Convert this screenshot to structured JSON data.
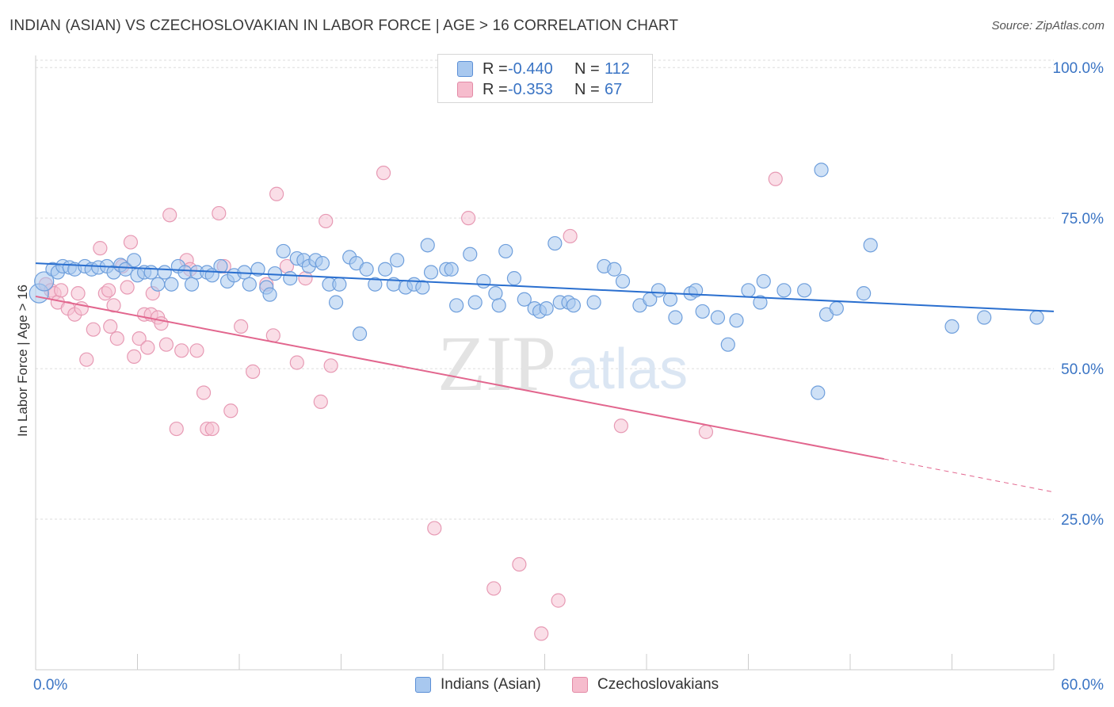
{
  "title": "INDIAN (ASIAN) VS CZECHOSLOVAKIAN IN LABOR FORCE | AGE > 16 CORRELATION CHART",
  "source": "Source: ZipAtlas.com",
  "watermark": {
    "zip": "ZIP",
    "atlas": "atlas"
  },
  "legend_top": {
    "rows": [
      {
        "r_label": "R =",
        "r_value": "-0.440",
        "n_label": "N =",
        "n_value": "112",
        "color": "#a8c8ef",
        "border": "#5b8fd6"
      },
      {
        "r_label": "R =",
        "r_value": "-0.353",
        "n_label": "N =",
        "n_value": "67",
        "color": "#f6bccd",
        "border": "#e38aa6"
      }
    ]
  },
  "legend_bottom": [
    {
      "label": "Indians (Asian)",
      "color": "#a8c8ef",
      "border": "#5b8fd6"
    },
    {
      "label": "Czechoslovakians",
      "color": "#f6bccd",
      "border": "#e38aa6"
    }
  ],
  "colors": {
    "blue_line": "#2a6fcf",
    "pink_line": "#e2668e",
    "blue_fill": "#a8c8ef",
    "blue_stroke": "#6f9fdc",
    "pink_fill": "#f6c3d3",
    "pink_stroke": "#e79ab4",
    "grid": "#dddddd",
    "tick_text": "#3a74c4"
  },
  "chart_data": {
    "type": "scatter",
    "title": "INDIAN (ASIAN) VS CZECHOSLOVAKIAN IN LABOR FORCE | AGE > 16 CORRELATION CHART",
    "xlabel": "",
    "ylabel": "In Labor Force | Age > 16",
    "xlim": [
      0,
      60
    ],
    "ylim": [
      0,
      102
    ],
    "x_tick_labels": [
      "0.0%",
      "60.0%"
    ],
    "y_ticks": [
      25,
      50,
      75,
      100
    ],
    "y_tick_labels": [
      "25.0%",
      "50.0%",
      "75.0%",
      "100.0%"
    ],
    "grid": "horizontal dashed",
    "legend_placement": "top-center",
    "series": [
      {
        "name": "Indians (Asian)",
        "trend": [
          [
            0,
            67.5
          ],
          [
            60,
            59.5
          ]
        ],
        "points": [
          [
            0.2,
            62.5
          ],
          [
            0.5,
            64.5
          ],
          [
            1.0,
            66.5
          ],
          [
            1.3,
            66.0
          ],
          [
            1.6,
            67.0
          ],
          [
            2.0,
            66.8
          ],
          [
            2.3,
            66.5
          ],
          [
            2.9,
            67.0
          ],
          [
            3.3,
            66.5
          ],
          [
            3.7,
            66.8
          ],
          [
            4.2,
            67.0
          ],
          [
            4.6,
            66.0
          ],
          [
            5.0,
            67.2
          ],
          [
            5.3,
            66.5
          ],
          [
            5.8,
            68.0
          ],
          [
            6.0,
            65.5
          ],
          [
            6.4,
            66.0
          ],
          [
            6.8,
            66.0
          ],
          [
            7.2,
            64.0
          ],
          [
            7.6,
            66.0
          ],
          [
            8.0,
            64.0
          ],
          [
            8.4,
            67.0
          ],
          [
            8.8,
            66.0
          ],
          [
            9.2,
            64.0
          ],
          [
            9.5,
            66.0
          ],
          [
            10.1,
            66.0
          ],
          [
            10.4,
            65.5
          ],
          [
            10.9,
            67.0
          ],
          [
            11.3,
            64.5
          ],
          [
            11.7,
            65.5
          ],
          [
            12.3,
            66.0
          ],
          [
            12.6,
            64.0
          ],
          [
            13.1,
            66.5
          ],
          [
            13.6,
            63.5
          ],
          [
            13.8,
            62.3
          ],
          [
            14.1,
            65.8
          ],
          [
            14.6,
            69.5
          ],
          [
            15.0,
            65.0
          ],
          [
            15.4,
            68.3
          ],
          [
            15.8,
            68.0
          ],
          [
            16.1,
            67.0
          ],
          [
            16.5,
            68.0
          ],
          [
            16.9,
            67.5
          ],
          [
            17.3,
            64.0
          ],
          [
            17.7,
            61.0
          ],
          [
            17.9,
            64.0
          ],
          [
            18.5,
            68.5
          ],
          [
            18.9,
            67.5
          ],
          [
            19.1,
            55.8
          ],
          [
            19.5,
            66.5
          ],
          [
            20.0,
            64.0
          ],
          [
            20.6,
            66.5
          ],
          [
            21.1,
            64.0
          ],
          [
            21.3,
            68.0
          ],
          [
            21.8,
            63.5
          ],
          [
            22.3,
            64.0
          ],
          [
            22.8,
            63.5
          ],
          [
            23.1,
            70.5
          ],
          [
            23.3,
            66.0
          ],
          [
            24.2,
            66.5
          ],
          [
            24.5,
            66.5
          ],
          [
            24.8,
            60.5
          ],
          [
            25.6,
            69.0
          ],
          [
            25.9,
            61.0
          ],
          [
            26.4,
            64.5
          ],
          [
            27.1,
            62.5
          ],
          [
            27.3,
            60.5
          ],
          [
            27.7,
            69.5
          ],
          [
            28.2,
            65.0
          ],
          [
            28.8,
            61.5
          ],
          [
            29.4,
            60.0
          ],
          [
            29.7,
            59.5
          ],
          [
            30.1,
            60.0
          ],
          [
            30.6,
            70.8
          ],
          [
            30.9,
            61.0
          ],
          [
            31.4,
            61.0
          ],
          [
            31.7,
            60.5
          ],
          [
            32.9,
            61.0
          ],
          [
            33.5,
            67.0
          ],
          [
            34.1,
            66.5
          ],
          [
            34.6,
            64.5
          ],
          [
            35.6,
            60.5
          ],
          [
            36.2,
            61.5
          ],
          [
            36.7,
            63.0
          ],
          [
            37.4,
            61.5
          ],
          [
            37.7,
            58.5
          ],
          [
            38.6,
            62.5
          ],
          [
            38.9,
            63.0
          ],
          [
            39.3,
            59.5
          ],
          [
            40.2,
            58.5
          ],
          [
            40.8,
            54.0
          ],
          [
            41.3,
            58.0
          ],
          [
            42.0,
            63.0
          ],
          [
            42.7,
            61.0
          ],
          [
            42.9,
            64.5
          ],
          [
            44.1,
            63.0
          ],
          [
            45.3,
            63.0
          ],
          [
            46.1,
            46.0
          ],
          [
            46.3,
            83.0
          ],
          [
            46.6,
            59.0
          ],
          [
            47.2,
            60.0
          ],
          [
            48.8,
            62.5
          ],
          [
            49.2,
            70.5
          ],
          [
            54.0,
            57.0
          ],
          [
            55.9,
            58.5
          ],
          [
            59.0,
            58.5
          ]
        ]
      },
      {
        "name": "Czechoslovakians",
        "trend_solid": [
          [
            0,
            62.0
          ],
          [
            50,
            35.0
          ]
        ],
        "trend_dashed": [
          [
            50,
            35.0
          ],
          [
            60,
            29.5
          ]
        ],
        "points": [
          [
            0.6,
            64.0
          ],
          [
            0.9,
            63.0
          ],
          [
            1.1,
            62.5
          ],
          [
            1.3,
            61.0
          ],
          [
            1.5,
            63.0
          ],
          [
            1.9,
            60.0
          ],
          [
            2.3,
            59.0
          ],
          [
            2.5,
            62.5
          ],
          [
            2.7,
            60.0
          ],
          [
            3.0,
            51.5
          ],
          [
            3.4,
            56.5
          ],
          [
            3.8,
            70.0
          ],
          [
            4.1,
            62.5
          ],
          [
            4.3,
            63.0
          ],
          [
            4.4,
            57.0
          ],
          [
            4.6,
            60.5
          ],
          [
            4.8,
            55.0
          ],
          [
            5.1,
            67.0
          ],
          [
            5.4,
            63.5
          ],
          [
            5.6,
            71.0
          ],
          [
            5.8,
            52.0
          ],
          [
            6.1,
            55.0
          ],
          [
            6.4,
            59.0
          ],
          [
            6.6,
            53.5
          ],
          [
            6.8,
            59.0
          ],
          [
            6.9,
            62.5
          ],
          [
            7.2,
            58.5
          ],
          [
            7.4,
            57.5
          ],
          [
            7.7,
            54.0
          ],
          [
            7.9,
            75.5
          ],
          [
            8.3,
            40.0
          ],
          [
            8.6,
            53.0
          ],
          [
            8.9,
            68.0
          ],
          [
            9.1,
            66.5
          ],
          [
            9.5,
            53.0
          ],
          [
            9.9,
            46.0
          ],
          [
            10.1,
            40.0
          ],
          [
            10.4,
            40.0
          ],
          [
            10.8,
            75.8
          ],
          [
            11.1,
            67.0
          ],
          [
            11.5,
            43.0
          ],
          [
            12.1,
            57.0
          ],
          [
            12.8,
            49.5
          ],
          [
            13.6,
            64.0
          ],
          [
            14.0,
            55.5
          ],
          [
            14.2,
            79.0
          ],
          [
            14.8,
            67.0
          ],
          [
            15.4,
            51.0
          ],
          [
            15.9,
            65.0
          ],
          [
            16.8,
            44.5
          ],
          [
            17.1,
            74.5
          ],
          [
            17.4,
            50.5
          ],
          [
            20.5,
            82.5
          ],
          [
            23.5,
            23.5
          ],
          [
            25.5,
            75.0
          ],
          [
            27.0,
            13.5
          ],
          [
            28.5,
            17.5
          ],
          [
            29.8,
            6.0
          ],
          [
            30.8,
            11.5
          ],
          [
            31.5,
            72.0
          ],
          [
            34.5,
            40.5
          ],
          [
            39.5,
            39.5
          ],
          [
            43.6,
            81.5
          ]
        ]
      }
    ]
  }
}
